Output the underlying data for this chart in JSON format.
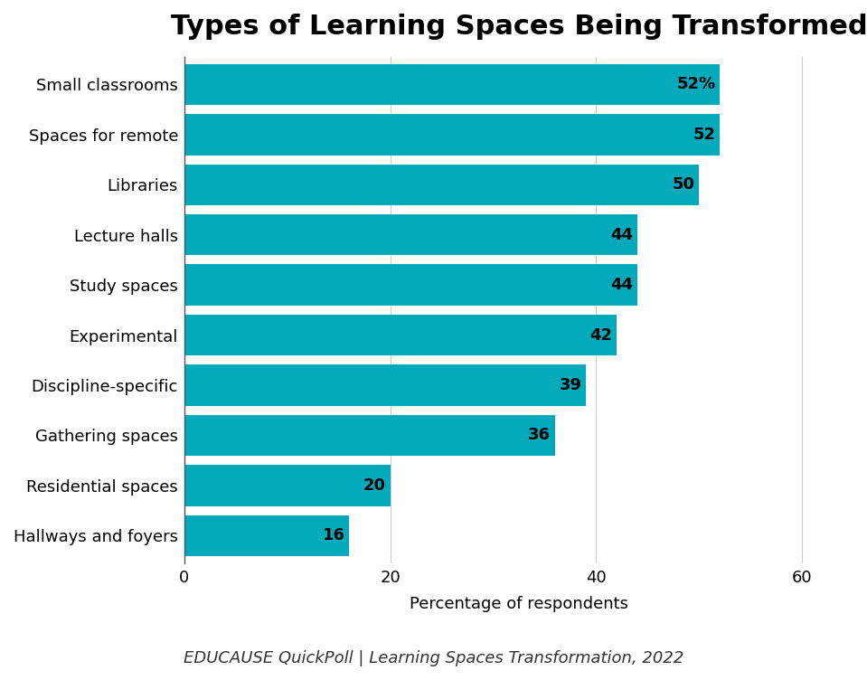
{
  "title": "Types of Learning Spaces Being Transformed",
  "categories": [
    "Hallways and foyers",
    "Residential spaces",
    "Gathering spaces",
    "Discipline-specific",
    "Experimental",
    "Study spaces",
    "Lecture halls",
    "Libraries",
    "Spaces for remote",
    "Small classrooms"
  ],
  "values": [
    16,
    20,
    36,
    39,
    42,
    44,
    44,
    50,
    52,
    52
  ],
  "bar_color": "#00AABB",
  "bar_labels": [
    "16",
    "20",
    "36",
    "39",
    "42",
    "44",
    "44",
    "50",
    "52",
    "52%"
  ],
  "xlabel": "Percentage of respondents",
  "xlim": [
    0,
    65
  ],
  "xticks": [
    0,
    20,
    40,
    60
  ],
  "footnote": "EDUCAUSE QuickPoll | Learning Spaces Transformation, 2022",
  "title_fontsize": 22,
  "label_fontsize": 13,
  "tick_fontsize": 13,
  "bar_label_fontsize": 13,
  "footnote_fontsize": 13,
  "background_color": "#ffffff"
}
